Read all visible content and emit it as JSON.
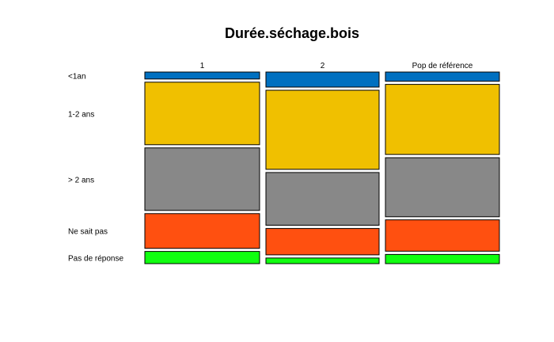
{
  "chart_data": {
    "type": "mosaic",
    "title": "Durée.séchage.bois",
    "columns": [
      "1",
      "2",
      "Pop de référence"
    ],
    "rows": [
      "<1an",
      "1-2 ans",
      "> 2 ans",
      "Ne sait pas",
      "Pas de réponse"
    ],
    "colors": [
      "#0070c0",
      "#f0c000",
      "#888888",
      "#ff5010",
      "#10ff10"
    ],
    "series": [
      {
        "column": "1",
        "proportions": [
          0.04,
          0.36,
          0.36,
          0.2,
          0.07
        ]
      },
      {
        "column": "2",
        "proportions": [
          0.08,
          0.42,
          0.28,
          0.14,
          0.03
        ]
      },
      {
        "column": "Pop de référence",
        "proportions": [
          0.05,
          0.38,
          0.32,
          0.17,
          0.05
        ]
      }
    ],
    "column_widths": [
      0.333,
      0.333,
      0.334
    ],
    "grid": false,
    "legend": "none"
  }
}
